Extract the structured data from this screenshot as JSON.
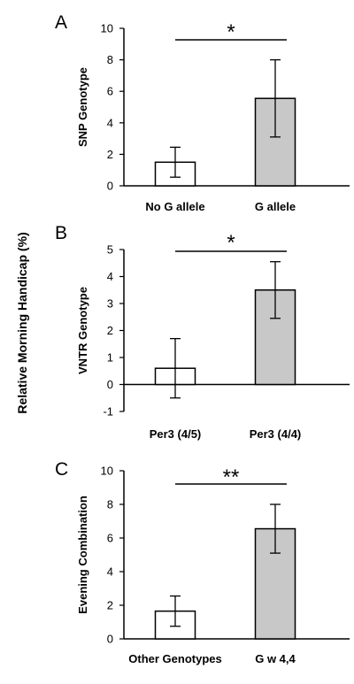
{
  "shared_ylabel": "Relative Morning Handicap (%)",
  "colors": {
    "bar_open": "#ffffff",
    "bar_filled": "#c8c8c8",
    "stroke": "#000000"
  },
  "chart_data": [
    {
      "panel": "A",
      "type": "bar",
      "ylabel": "SNP Genotype",
      "categories": [
        "No G allele",
        "G allele"
      ],
      "values": [
        1.5,
        5.55
      ],
      "error": [
        0.95,
        2.45
      ],
      "fills": [
        "open",
        "filled"
      ],
      "ylim": [
        0,
        10
      ],
      "yticks": [
        "0",
        "2",
        "4",
        "6",
        "8",
        "10"
      ],
      "significance": "*"
    },
    {
      "panel": "B",
      "type": "bar",
      "ylabel": "VNTR Genotype",
      "categories": [
        "Per3 (4/5)",
        "Per3 (4/4)"
      ],
      "values": [
        0.6,
        3.5
      ],
      "error": [
        1.1,
        1.05
      ],
      "fills": [
        "open",
        "filled"
      ],
      "ylim": [
        -1,
        5
      ],
      "yticks": [
        "-1",
        "0",
        "1",
        "2",
        "3",
        "4",
        "5"
      ],
      "significance": "*"
    },
    {
      "panel": "C",
      "type": "bar",
      "ylabel": "Evening Combination",
      "categories": [
        "Other Genotypes",
        "G w 4,4"
      ],
      "values": [
        1.65,
        6.55
      ],
      "error": [
        0.9,
        1.45
      ],
      "fills": [
        "open",
        "filled"
      ],
      "ylim": [
        0,
        10
      ],
      "yticks": [
        "0",
        "2",
        "4",
        "6",
        "8",
        "10"
      ],
      "significance": "**"
    }
  ]
}
